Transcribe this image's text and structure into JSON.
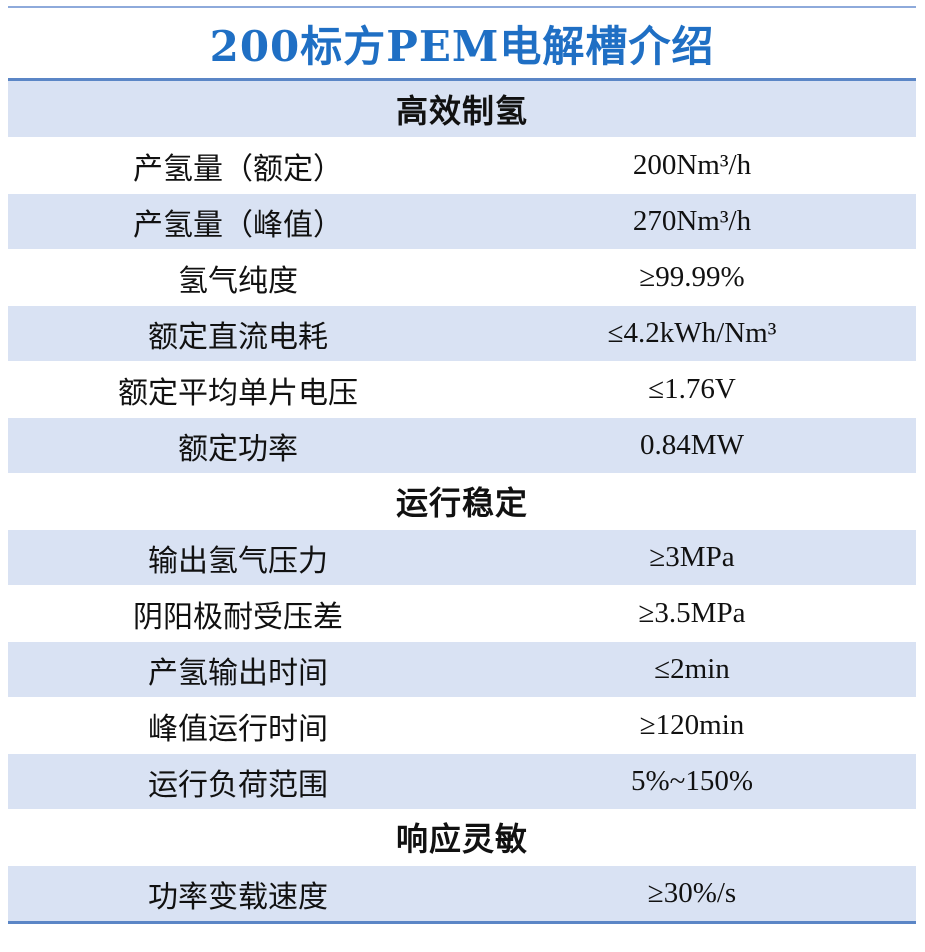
{
  "title": "200标方PEM电解槽介绍",
  "sections": [
    {
      "heading": "高效制氢",
      "rows": [
        {
          "label": "产氢量（额定）",
          "value": "200Nm³/h"
        },
        {
          "label": "产氢量（峰值）",
          "value": "270Nm³/h"
        },
        {
          "label": "氢气纯度",
          "value": "≥99.99%"
        },
        {
          "label": "额定直流电耗",
          "value": "≤4.2kWh/Nm³"
        },
        {
          "label": "额定平均单片电压",
          "value": "≤1.76V"
        },
        {
          "label": "额定功率",
          "value": "0.84MW"
        }
      ]
    },
    {
      "heading": "运行稳定",
      "rows": [
        {
          "label": "输出氢气压力",
          "value": "≥3MPa"
        },
        {
          "label": "阴阳极耐受压差",
          "value": "≥3.5MPa"
        },
        {
          "label": "产氢输出时间",
          "value": "≤2min"
        },
        {
          "label": "峰值运行时间",
          "value": "≥120min"
        },
        {
          "label": "运行负荷范围",
          "value": "5%~150%"
        }
      ]
    },
    {
      "heading": "响应灵敏",
      "rows": [
        {
          "label": "功率变载速度",
          "value": "≥30%/s"
        }
      ]
    }
  ],
  "colors": {
    "title": "#1f6fc4",
    "rule": "#5b86c6",
    "band": "#d9e2f3"
  }
}
